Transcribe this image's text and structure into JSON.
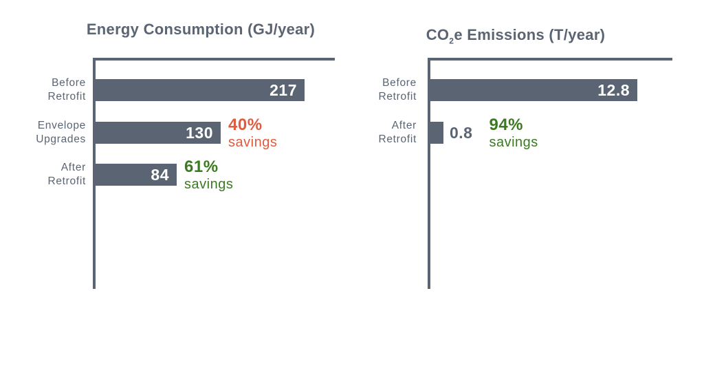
{
  "colors": {
    "background": "#ffffff",
    "slate": "#5a6472",
    "bar": "#5a6472",
    "axis": "#5a6472",
    "value_inside": "#ffffff",
    "orange": "#e05c3f",
    "green": "#3a7a20"
  },
  "charts": [
    {
      "title": {
        "pre": "Energy Consumption (GJ/year)",
        "sub": "",
        "post": ""
      },
      "rows": [
        {
          "label1": "Before",
          "label2": "Retrofit",
          "value_label": "217",
          "value": 217
        },
        {
          "label1": "Envelope",
          "label2": "Upgrades",
          "value_label": "130",
          "value": 130,
          "annotation": {
            "percent": "40%",
            "note": "savings",
            "color": "#e05c3f"
          }
        },
        {
          "label1": "After",
          "label2": "Retrofit",
          "value_label": "84",
          "value": 84,
          "annotation": {
            "percent": "61%",
            "note": "savings",
            "color": "#3a7a20"
          }
        }
      ]
    },
    {
      "title": {
        "pre": "CO",
        "sub": "2",
        "post": "e Emissions (T/year)"
      },
      "rows": [
        {
          "label1": "Before",
          "label2": "Retrofit",
          "value_label": "12.8",
          "value": 12.8
        },
        {
          "label1": "After",
          "label2": "Retrofit",
          "value_label": "0.8",
          "value": 0.8,
          "annotation": {
            "percent": "94%",
            "note": "savings",
            "color": "#3a7a20"
          }
        }
      ]
    }
  ],
  "chart_data": [
    {
      "type": "bar",
      "orientation": "horizontal",
      "title": "Energy Consumption (GJ/year)",
      "categories": [
        "Before Retrofit",
        "Envelope Upgrades",
        "After Retrofit"
      ],
      "values": [
        217,
        130,
        84
      ],
      "data_labels": [
        "217",
        "130",
        "84"
      ],
      "annotations": [
        null,
        "40% savings",
        "61% savings"
      ],
      "annotation_colors": [
        null,
        "#e05c3f",
        "#3a7a20"
      ],
      "xlabel": "",
      "ylabel": "",
      "xlim": [
        0,
        230
      ],
      "grid": false,
      "legend": false,
      "bar_color": "#5a6472"
    },
    {
      "type": "bar",
      "orientation": "horizontal",
      "title": "CO2e Emissions (T/year)",
      "categories": [
        "Before Retrofit",
        "After Retrofit"
      ],
      "values": [
        12.8,
        0.8
      ],
      "data_labels": [
        "12.8",
        "0.8"
      ],
      "annotations": [
        null,
        "94% savings"
      ],
      "annotation_colors": [
        null,
        "#3a7a20"
      ],
      "xlabel": "",
      "ylabel": "",
      "xlim": [
        0,
        13.6
      ],
      "grid": false,
      "legend": false,
      "bar_color": "#5a6472"
    }
  ]
}
